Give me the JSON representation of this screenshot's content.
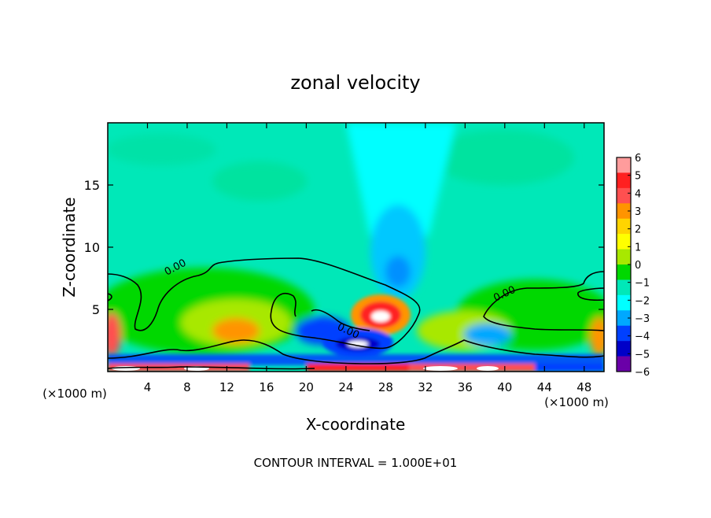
{
  "chart_data": {
    "type": "heatmap",
    "title": "zonal velocity",
    "xlabel": "X-coordinate",
    "ylabel": "Z-coordinate",
    "x_unit_label": "(×1000 m)",
    "y_unit_label": "(×1000 m)",
    "xlim": [
      0,
      50
    ],
    "ylim": [
      0,
      20
    ],
    "x_ticks": [
      4,
      8,
      12,
      16,
      20,
      24,
      28,
      32,
      36,
      40,
      44,
      48
    ],
    "y_ticks": [
      5,
      10,
      15
    ],
    "grid": false,
    "colorbar": {
      "position": "right",
      "levels": [
        6,
        5,
        4,
        3,
        2,
        1,
        0,
        -1,
        -2,
        -3,
        -4,
        -5,
        -6
      ],
      "colors": [
        "#ff9c9c",
        "#ff2020",
        "#ff5050",
        "#ff9400",
        "#ffd400",
        "#ffff00",
        "#a8e800",
        "#00d800",
        "#00e8b8",
        "#00ffff",
        "#00a8ff",
        "#0040ff",
        "#0000c8",
        "#6a00a8"
      ]
    },
    "contour_labels": [
      "0.00",
      "0.00",
      "0.00"
    ],
    "contour_interval_text": "CONTOUR INTERVAL = 1.000E+01",
    "features": [
      {
        "kind": "max",
        "x": 28.5,
        "z": 4.5,
        "value": 6
      },
      {
        "kind": "min",
        "x": 24.5,
        "z": 2.5,
        "value": -6
      },
      {
        "kind": "min",
        "x": 29.5,
        "z": 8.0,
        "value": -3
      },
      {
        "kind": "max",
        "x": 1.0,
        "z": 3.0,
        "value": 3
      },
      {
        "kind": "max",
        "x": 12.5,
        "z": 3.5,
        "value": 3
      },
      {
        "kind": "max",
        "x": 49.0,
        "z": 3.0,
        "value": 3
      }
    ]
  }
}
